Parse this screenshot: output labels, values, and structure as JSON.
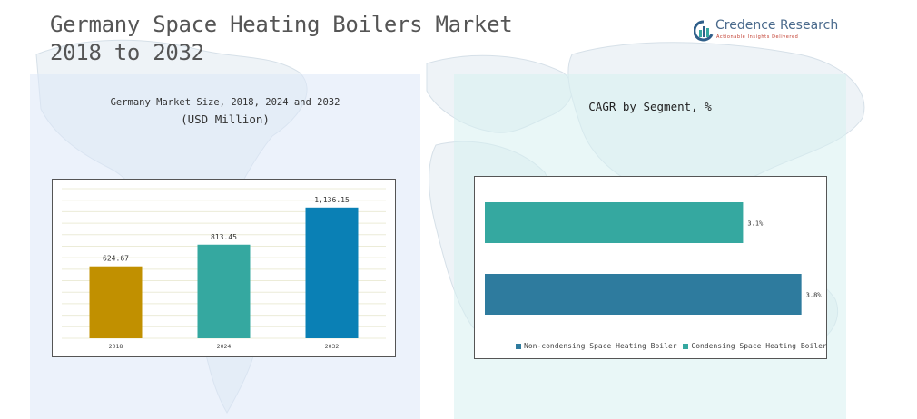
{
  "header": {
    "title_line1": "Germany Space Heating Boilers Market",
    "title_line2": "2018 to 2032"
  },
  "logo": {
    "brand": "Credence Research",
    "tagline": "Actionable Insights Delivered",
    "colors": {
      "brand_text": "#4a6a8c",
      "tagline": "#c0392b",
      "icon_blue": "#2f5f8a",
      "icon_teal": "#35a8a0"
    }
  },
  "left_panel": {
    "title": "Germany Market Size, 2018, 2024 and 2032",
    "subtitle": "(USD Million)"
  },
  "right_panel": {
    "title": "CAGR by Segment, %"
  },
  "chart_data": [
    {
      "type": "bar",
      "title": "Germany Market Size, 2018, 2024 and 2032",
      "subtitle": "(USD Million)",
      "categories": [
        "2018",
        "2024",
        "2032"
      ],
      "values": [
        624.67,
        813.45,
        1136.15
      ],
      "value_labels": [
        "624.67",
        "813.45",
        "1,136.15"
      ],
      "colors": [
        "#c19000",
        "#35a8a0",
        "#0a80b5"
      ],
      "ylim": [
        0,
        1300
      ],
      "grid": true,
      "xlabel": "",
      "ylabel": ""
    },
    {
      "type": "bar",
      "orientation": "horizontal",
      "title": "CAGR by Segment, %",
      "categories": [
        "Condensing Space Heating Boiler",
        "Non-condensing Space Heating Boiler"
      ],
      "values": [
        3.1,
        3.8
      ],
      "value_labels": [
        "3.1%",
        "3.8%"
      ],
      "colors": [
        "#35a8a0",
        "#2e7b9e"
      ],
      "xlim": [
        0,
        4.0
      ],
      "legend": {
        "placement": "bottom",
        "items": [
          {
            "label": "Non-condensing Space Heating Boiler",
            "color": "#2e7b9e"
          },
          {
            "label": "Condensing Space Heating Boiler",
            "color": "#35a8a0"
          }
        ]
      }
    }
  ]
}
